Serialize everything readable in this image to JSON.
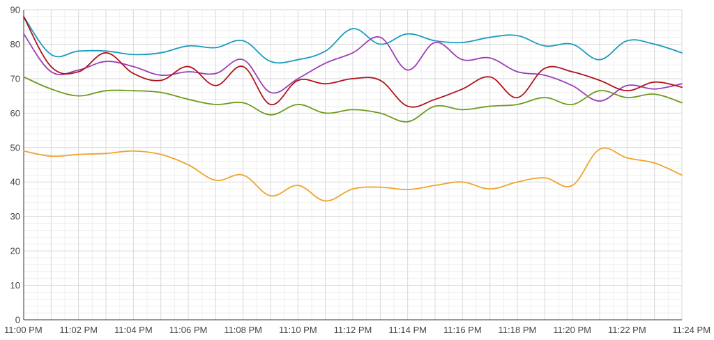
{
  "chart_data": {
    "type": "line",
    "title": "",
    "xlabel": "",
    "ylabel": "",
    "ylim": [
      0,
      90
    ],
    "yticks": [
      0,
      10,
      20,
      30,
      40,
      50,
      60,
      70,
      80,
      90
    ],
    "xticks": [
      "11:00 PM",
      "11:02 PM",
      "11:04 PM",
      "11:06 PM",
      "11:08 PM",
      "11:10 PM",
      "11:12 PM",
      "11:14 PM",
      "11:16 PM",
      "11:18 PM",
      "11:20 PM",
      "11:22 PM",
      "11:24 PM"
    ],
    "x_minutes": [
      0,
      1,
      2,
      3,
      4,
      5,
      6,
      7,
      8,
      9,
      10,
      11,
      12,
      13,
      14,
      15,
      16,
      17,
      18,
      19,
      20,
      21,
      22,
      23,
      24
    ],
    "grid": true,
    "legend": "none",
    "series": [
      {
        "color": "#1a9bbd",
        "values": [
          88,
          77,
          78,
          78,
          77,
          77.5,
          79.5,
          79,
          81,
          75,
          75.5,
          78,
          84.5,
          80,
          83,
          81,
          80.5,
          82,
          82.5,
          79.5,
          80,
          75.5,
          81,
          80,
          77.5
        ]
      },
      {
        "color": "#9b3fb5",
        "values": [
          83,
          72,
          72.5,
          75,
          73.5,
          71,
          72,
          71.5,
          75.5,
          66,
          70,
          74.5,
          77.5,
          82,
          72.5,
          80.5,
          75.5,
          76,
          72,
          71,
          68,
          63.5,
          68,
          67,
          68.5
        ]
      },
      {
        "color": "#b0121c",
        "values": [
          88,
          73.5,
          72,
          77.5,
          71.5,
          69.5,
          73.5,
          68,
          73.5,
          62.5,
          69.5,
          68.5,
          70,
          69.5,
          62,
          64,
          67,
          70.5,
          64.5,
          73,
          72,
          69.5,
          66.5,
          69,
          67.5
        ]
      },
      {
        "color": "#6e9a1e",
        "values": [
          70.5,
          67,
          65,
          66.5,
          66.5,
          66,
          64,
          62.5,
          63,
          59.5,
          62.5,
          60,
          61,
          60,
          57.5,
          62,
          61,
          62,
          62.5,
          64.5,
          62.5,
          66.5,
          64.5,
          65.5,
          63
        ]
      },
      {
        "color": "#f0a32b",
        "values": [
          49,
          47.5,
          48,
          48.3,
          49,
          48,
          45,
          40.5,
          42,
          36,
          39,
          34.5,
          38,
          38.5,
          37.8,
          39,
          40,
          38,
          40,
          41.2,
          39,
          49.5,
          47,
          45.5,
          42
        ]
      }
    ]
  }
}
